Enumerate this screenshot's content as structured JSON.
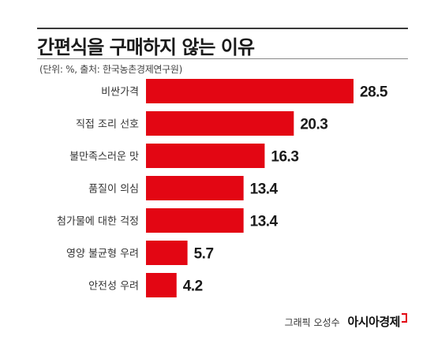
{
  "chart_data": {
    "type": "bar",
    "orientation": "horizontal",
    "title": "간편식을 구매하지 않는 이유",
    "subtitle": "(단위: %, 출처: 한국농촌경제연구원)",
    "categories": [
      "비싼가격",
      "직접 조리 선호",
      "불만족스러운 맛",
      "품질이 의심",
      "첨가물에 대한 걱정",
      "영양 불균형 우려",
      "안전성 우려"
    ],
    "values": [
      28.5,
      20.3,
      16.3,
      13.4,
      13.4,
      5.7,
      4.2
    ],
    "value_labels": [
      "28.5",
      "20.3",
      "16.3",
      "13.4",
      "13.4",
      "5.7",
      "4.2"
    ],
    "xlim": [
      0,
      28.5
    ],
    "grid": false,
    "legend": "none",
    "bar_color": "#e30613"
  },
  "footer": {
    "credit": "그래픽 오성수",
    "brand": "아시아경제"
  }
}
